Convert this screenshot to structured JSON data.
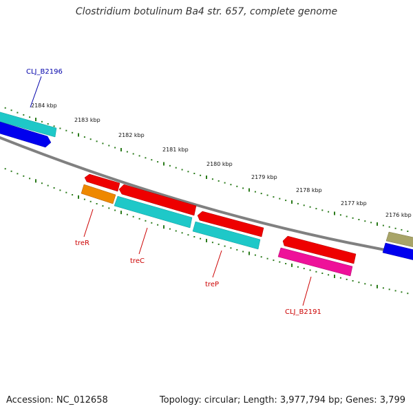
{
  "title": "Clostridium botulinum Ba4 str. 657, complete genome",
  "footer": {
    "accession": "Accession: NC_012658",
    "summary": "Topology: circular; Length: 3,977,794 bp; Genes: 3,799"
  },
  "ticks": [
    "2184 kbp",
    "2183 kbp",
    "2182 kbp",
    "2181 kbp",
    "2180 kbp",
    "2179 kbp",
    "2178 kbp",
    "2177 kbp",
    "2176 kbp"
  ],
  "genes": [
    {
      "label": "CLJ_B2196",
      "label_color": "#0000aa"
    },
    {
      "label": "treR",
      "label_color": "#cc0000"
    },
    {
      "label": "treC",
      "label_color": "#cc0000"
    },
    {
      "label": "treP",
      "label_color": "#cc0000"
    },
    {
      "label": "CLJ_B2191",
      "label_color": "#cc0000"
    }
  ],
  "colors": {
    "backbone": "#808080",
    "tick": "#2a7a1a",
    "cds_red": "#ee0000",
    "cyan": "#1ec8c8",
    "blue": "#0000ee",
    "orange": "#ee8800",
    "magenta": "#ee1199",
    "olive": "#a8a468"
  }
}
